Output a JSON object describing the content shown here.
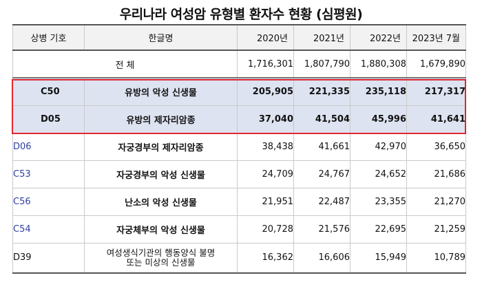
{
  "title": "우리나라 여성암 유형별 환자수 현황 (심평원)",
  "columns": [
    "상병 기호",
    "한글명",
    "2020년",
    "2021년",
    "2022년",
    "2023년 7월"
  ],
  "total": {
    "label": "전 체",
    "values": [
      "1,716,301",
      "1,807,790",
      "1,880,308",
      "1,679,890"
    ]
  },
  "rows": [
    {
      "code": "C50",
      "name": "유방의 악성 신생물",
      "values": [
        "205,905",
        "221,335",
        "235,118",
        "217,317"
      ]
    },
    {
      "code": "D05",
      "name": "유방의 제자리암종",
      "values": [
        "37,040",
        "41,504",
        "45,996",
        "41,641"
      ]
    },
    {
      "code": "D06",
      "name": "자궁경부의 제자리암종",
      "values": [
        "38,438",
        "41,661",
        "42,970",
        "36,650"
      ]
    },
    {
      "code": "C53",
      "name": "자궁경부의 악성 신생물",
      "values": [
        "24,709",
        "24,767",
        "24,652",
        "21,686"
      ]
    },
    {
      "code": "C56",
      "name": "난소의 악성 신생물",
      "values": [
        "21,951",
        "22,487",
        "23,355",
        "21,270"
      ]
    },
    {
      "code": "C54",
      "name": "자궁체부의 악성 신생물",
      "values": [
        "20,728",
        "21,576",
        "22,695",
        "21,259"
      ]
    },
    {
      "code": "D39",
      "name_line1": "여성생식기관의 행동양식 불명",
      "name_line2": "또는 미상의 신생물",
      "values": [
        "16,362",
        "16,606",
        "15,949",
        "10,789"
      ]
    }
  ],
  "colors": {
    "highlight_fill": "#dde3f1",
    "highlight_border": "#e0262d",
    "code_blue": "#2f3fa0",
    "header_fill": "#f2f2f2"
  }
}
